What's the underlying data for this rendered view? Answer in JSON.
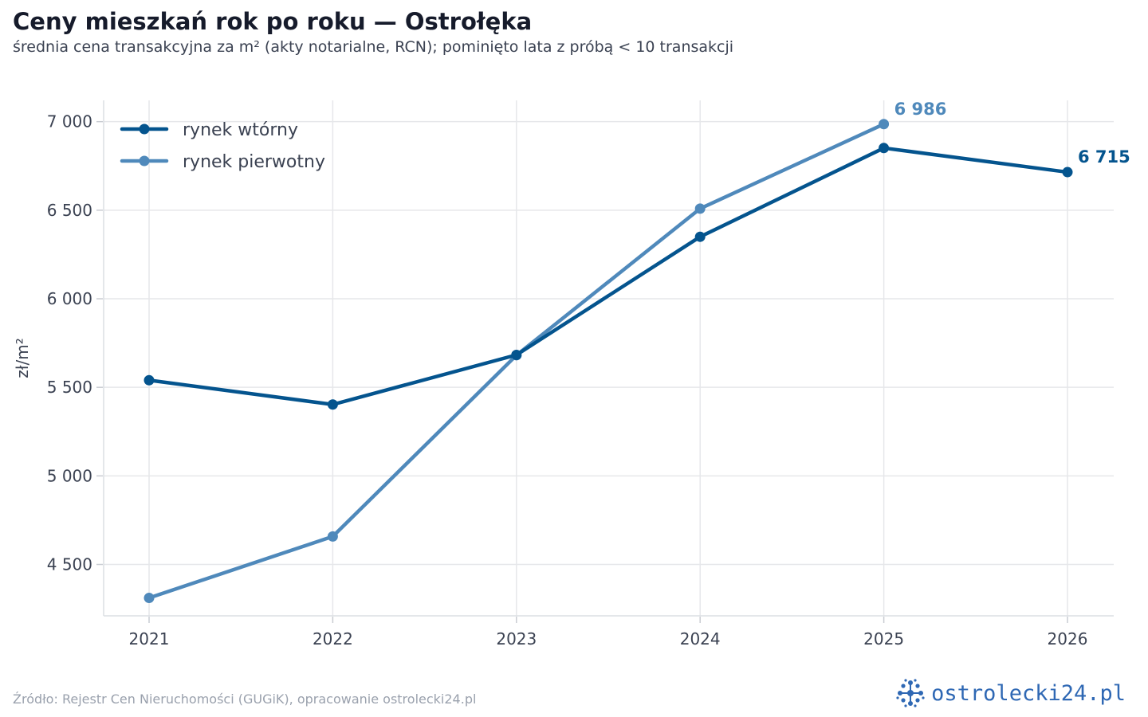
{
  "header": {
    "title": "Ceny mieszkań rok po roku — Ostrołęka",
    "subtitle": "średnia cena transakcyjna za m² (akty notarialne, RCN); pominięto lata z próbą < 10 transakcji"
  },
  "footer": {
    "source": "Źródło: Rejestr Cen Nieruchomości (GUGiK), opracowanie ostrolecki24.pl",
    "brand": "ostrolecki24.pl",
    "brand_icon": "snowflake-folk-icon",
    "brand_color": "#2f68b4"
  },
  "chart_data": {
    "type": "line",
    "x": [
      "2021",
      "2022",
      "2023",
      "2024",
      "2025",
      "2026"
    ],
    "ylabel": "zł/m²",
    "ylim": [
      4210,
      7120
    ],
    "yticks": [
      4500,
      5000,
      5500,
      6000,
      6500,
      7000
    ],
    "ytick_labels": [
      "4 500",
      "5 000",
      "5 500",
      "6 000",
      "6 500",
      "7 000"
    ],
    "grid": true,
    "legend_position": "top-left",
    "series": [
      {
        "name": "rynek wtórny",
        "color": "#04548e",
        "values": [
          5540,
          5403,
          5683,
          6350,
          6851,
          6715
        ],
        "end_label": "6 715"
      },
      {
        "name": "rynek pierwotny",
        "color": "#4f89bb",
        "values": [
          4311,
          4658,
          5681,
          6509,
          6986,
          null
        ],
        "end_label": "6 986"
      }
    ]
  }
}
